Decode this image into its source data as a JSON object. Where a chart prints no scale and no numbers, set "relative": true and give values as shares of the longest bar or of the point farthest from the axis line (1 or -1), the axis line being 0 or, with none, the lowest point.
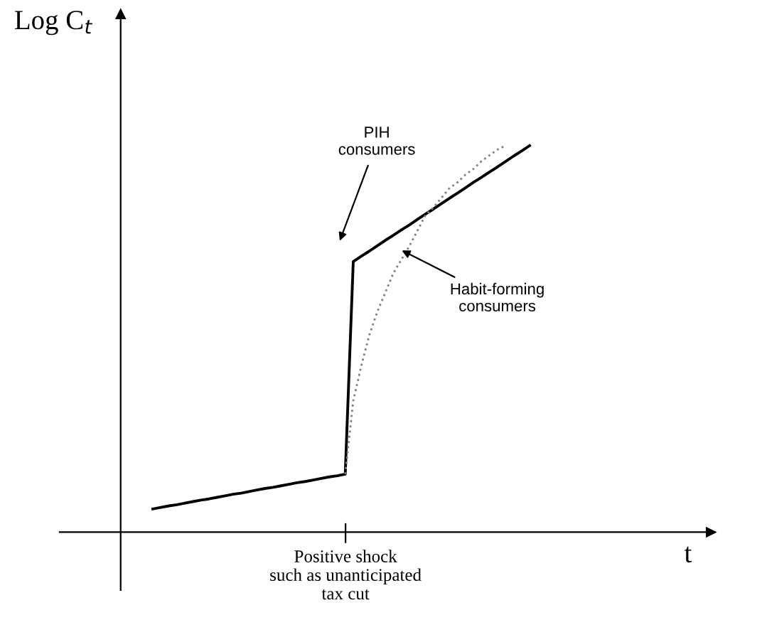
{
  "chart_data": {
    "type": "line",
    "relative": true,
    "ylabel": "Log C$_{t}$",
    "categories": [
      null,
      null,
      null,
      null,
      null,
      null,
      null,
      null,
      null,
      null,
      null,
      null,
      null,
      null,
      null,
      null,
      null,
      null,
      null,
      null,
      null,
      null,
      null,
      null,
      null,
      null,
      null,
      null,
      null,
      null,
      null,
      null,
      null,
      null,
      null,
      null,
      null,
      null,
      null,
      null,
      null,
      null,
      null,
      null,
      null,
      null,
      null,
      null
    ],
    "series": [
      {
        "color": "#000000",
        "line_style": "solid",
        "values": [
          0.06,
          0.064,
          0.068,
          0.071,
          0.075,
          0.079,
          0.083,
          0.086,
          0.09,
          0.094,
          0.098,
          0.101,
          0.105,
          0.109,
          0.113,
          0.116,
          0.12,
          0.124,
          0.128,
          0.131,
          0.135,
          0.139,
          0.143,
          0.146,
          0.15,
          0.7,
          0.714,
          0.727,
          0.741,
          0.755,
          0.768,
          0.782,
          0.795,
          0.809,
          0.823,
          0.836,
          0.85,
          0.864,
          0.877,
          0.891,
          0.905,
          0.918,
          0.932,
          0.945,
          0.959,
          0.973,
          0.986,
          1
        ]
      },
      {
        "color": "#808080",
        "line_style": "dotted",
        "values": [
          null,
          null,
          null,
          null,
          null,
          null,
          null,
          null,
          null,
          null,
          null,
          null,
          null,
          null,
          null,
          null,
          null,
          null,
          null,
          null,
          null,
          null,
          null,
          null,
          0.15,
          0.34,
          0.43,
          0.51,
          0.57,
          0.62,
          0.67,
          0.705,
          0.74,
          0.78,
          0.82,
          0.84,
          0.865,
          0.89,
          0.905,
          0.925,
          0.94,
          0.96,
          0.975,
          0.99,
          1.0,
          null,
          null,
          null
        ]
      }
    ],
    "annotations": [
      "PIH\nconsumers",
      "Habit-forming\nconsumers",
      "Positive shock\nsuch as unanticipated\ntax cut",
      "t"
    ],
    "marker": "none"
  }
}
